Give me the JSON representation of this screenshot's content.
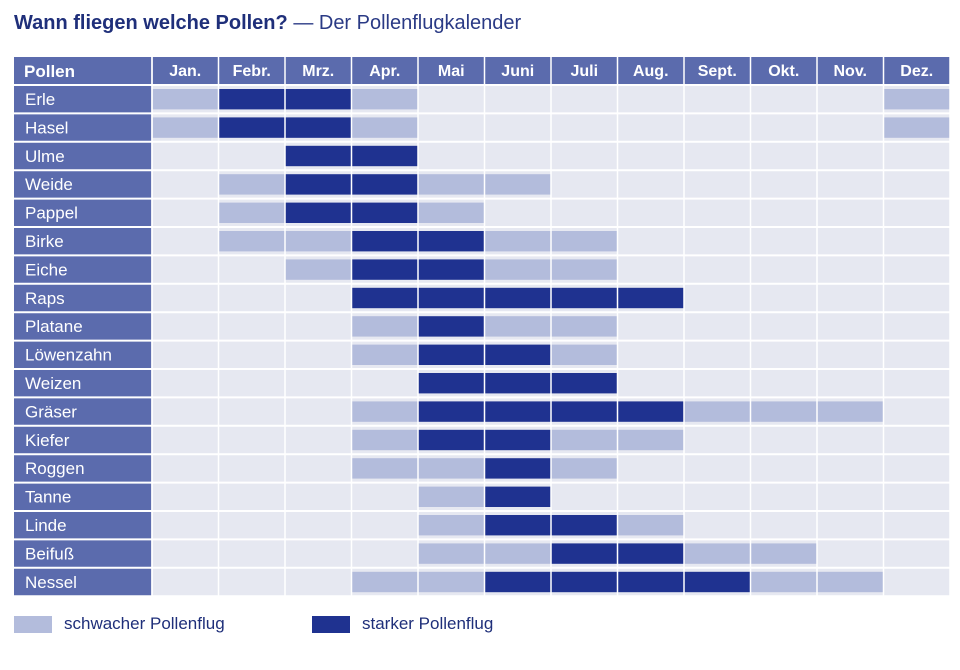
{
  "title": "Wann fliegen welche Pollen?",
  "subtitle": "— Der Pollenflugkalender",
  "colors": {
    "header_bg": "#5b6bad",
    "header_text": "#ffffff",
    "label_bg": "#5b6bad",
    "grid_bg": "#e6e8f1",
    "grid_line": "#ffffff",
    "weak": "#b3bcdc",
    "strong": "#1f3290",
    "text": "#1f2f7a"
  },
  "chart_data": {
    "type": "table",
    "header_label": "Pollen",
    "months": [
      "Jan.",
      "Febr.",
      "Mrz.",
      "Apr.",
      "Mai",
      "Juni",
      "Juli",
      "Aug.",
      "Sept.",
      "Okt.",
      "Nov.",
      "Dez."
    ],
    "unit": "month index (1 = Jan., 13 = end of Dez.)",
    "rows": [
      {
        "name": "Erle",
        "weak": [
          [
            1,
            2
          ],
          [
            3,
            5
          ],
          [
            12,
            13
          ]
        ],
        "strong": [
          [
            2,
            4
          ]
        ]
      },
      {
        "name": "Hasel",
        "weak": [
          [
            1,
            2
          ],
          [
            3,
            5
          ],
          [
            12,
            13
          ]
        ],
        "strong": [
          [
            2,
            4
          ]
        ]
      },
      {
        "name": "Ulme",
        "weak": [],
        "strong": [
          [
            3,
            5
          ]
        ]
      },
      {
        "name": "Weide",
        "weak": [
          [
            2,
            3
          ],
          [
            5,
            7
          ]
        ],
        "strong": [
          [
            3,
            5
          ]
        ]
      },
      {
        "name": "Pappel",
        "weak": [
          [
            2,
            3
          ],
          [
            5,
            6
          ]
        ],
        "strong": [
          [
            3,
            5
          ]
        ]
      },
      {
        "name": "Birke",
        "weak": [
          [
            2,
            4
          ],
          [
            6,
            8
          ]
        ],
        "strong": [
          [
            4,
            6
          ]
        ]
      },
      {
        "name": "Eiche",
        "weak": [
          [
            3,
            4
          ],
          [
            6,
            8
          ]
        ],
        "strong": [
          [
            4,
            6
          ]
        ]
      },
      {
        "name": "Raps",
        "weak": [],
        "strong": [
          [
            4,
            9
          ]
        ]
      },
      {
        "name": "Platane",
        "weak": [
          [
            4,
            5
          ],
          [
            6,
            8
          ]
        ],
        "strong": [
          [
            5,
            6
          ]
        ]
      },
      {
        "name": "Löwenzahn",
        "weak": [
          [
            4,
            5
          ],
          [
            7,
            8
          ]
        ],
        "strong": [
          [
            5,
            7
          ]
        ]
      },
      {
        "name": "Weizen",
        "weak": [],
        "strong": [
          [
            5,
            8
          ]
        ]
      },
      {
        "name": "Gräser",
        "weak": [
          [
            4,
            5
          ],
          [
            9,
            12
          ]
        ],
        "strong": [
          [
            5,
            9
          ]
        ]
      },
      {
        "name": "Kiefer",
        "weak": [
          [
            4,
            5
          ],
          [
            7,
            9
          ]
        ],
        "strong": [
          [
            5,
            7
          ]
        ]
      },
      {
        "name": "Roggen",
        "weak": [
          [
            4,
            6
          ],
          [
            7,
            8
          ]
        ],
        "strong": [
          [
            6,
            7
          ]
        ]
      },
      {
        "name": "Tanne",
        "weak": [
          [
            5,
            6
          ]
        ],
        "strong": [
          [
            6,
            7
          ]
        ]
      },
      {
        "name": "Linde",
        "weak": [
          [
            5,
            6
          ],
          [
            8,
            9
          ]
        ],
        "strong": [
          [
            6,
            8
          ]
        ]
      },
      {
        "name": "Beifuß",
        "weak": [
          [
            5,
            7
          ],
          [
            9,
            11
          ]
        ],
        "strong": [
          [
            7,
            9
          ]
        ]
      },
      {
        "name": "Nessel",
        "weak": [
          [
            4,
            6
          ],
          [
            10,
            12
          ]
        ],
        "strong": [
          [
            6,
            10
          ]
        ]
      }
    ]
  },
  "legend": {
    "weak_label": "schwacher Pollenflug",
    "strong_label": "starker Pollenflug"
  }
}
